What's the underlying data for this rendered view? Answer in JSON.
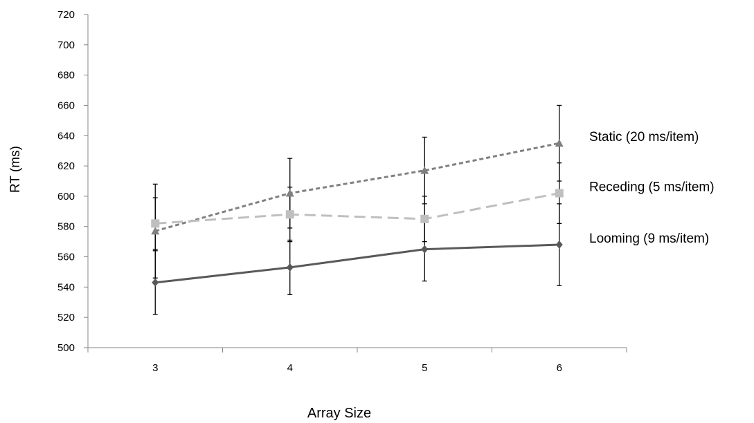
{
  "chart_data": {
    "type": "line",
    "title": "",
    "xlabel": "Array Size",
    "ylabel": "RT (ms)",
    "categories": [
      "3",
      "4",
      "5",
      "6"
    ],
    "ylim": [
      500,
      720
    ],
    "yticks": [
      500,
      520,
      540,
      560,
      580,
      600,
      620,
      640,
      660,
      680,
      700,
      720
    ],
    "grid": false,
    "legend": "line-end labels on the right",
    "series": [
      {
        "name": "Static (20 ms/item)",
        "values": [
          577,
          602,
          617,
          635
        ],
        "error": [
          31,
          23,
          22,
          25
        ],
        "marker": "triangle",
        "dash": "short-dash",
        "color": "#808080"
      },
      {
        "name": "Receding (5 ms/item)",
        "values": [
          582,
          588,
          585,
          602
        ],
        "error": [
          17,
          18,
          15,
          20
        ],
        "marker": "square",
        "dash": "long-dash",
        "color": "#bfbfbf"
      },
      {
        "name": "Looming (9 ms/item)",
        "values": [
          543,
          553,
          565,
          568
        ],
        "error": [
          21,
          18,
          21,
          27
        ],
        "marker": "diamond",
        "dash": "solid",
        "color": "#595959"
      }
    ]
  }
}
